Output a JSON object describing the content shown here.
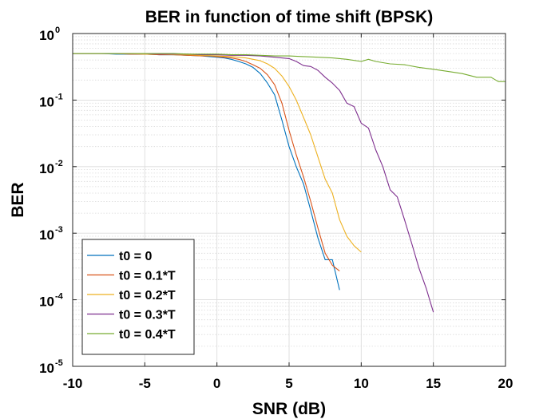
{
  "chart_data": {
    "type": "line",
    "title": "BER in function of time shift (BPSK)",
    "xlabel": "SNR (dB)",
    "ylabel": "BER",
    "xlim": [
      -10,
      20
    ],
    "ylim": [
      1e-05,
      1
    ],
    "yscale": "log",
    "grid": true,
    "minor_grid": true,
    "legend_position": "bottom-left",
    "x_ticks": [
      {
        "value": -10,
        "label": "-10"
      },
      {
        "value": -5,
        "label": "-5"
      },
      {
        "value": 0,
        "label": "0"
      },
      {
        "value": 5,
        "label": "5"
      },
      {
        "value": 10,
        "label": "10"
      },
      {
        "value": 15,
        "label": "15"
      },
      {
        "value": 20,
        "label": "20"
      }
    ],
    "y_ticks": [
      {
        "value": 1,
        "base": "10",
        "exp": "0"
      },
      {
        "value": 0.1,
        "base": "10",
        "exp": "-1"
      },
      {
        "value": 0.01,
        "base": "10",
        "exp": "-2"
      },
      {
        "value": 0.001,
        "base": "10",
        "exp": "-3"
      },
      {
        "value": 0.0001,
        "base": "10",
        "exp": "-4"
      },
      {
        "value": 1e-05,
        "base": "10",
        "exp": "-5"
      }
    ],
    "series": [
      {
        "name": "t0 = 0",
        "color": "#0072BD",
        "x": [
          -10,
          -9,
          -8,
          -7,
          -6,
          -5,
          -4,
          -3,
          -2,
          -1,
          -0.5,
          0,
          0.5,
          1,
          1.5,
          2,
          2.5,
          3,
          3.5,
          4,
          4.5,
          5,
          5.5,
          6,
          6.5,
          7,
          7.5,
          8,
          8.5
        ],
        "y": [
          0.5,
          0.5,
          0.5,
          0.49,
          0.49,
          0.49,
          0.48,
          0.48,
          0.47,
          0.46,
          0.45,
          0.44,
          0.43,
          0.41,
          0.38,
          0.35,
          0.31,
          0.25,
          0.18,
          0.12,
          0.05,
          0.02,
          0.01,
          0.0055,
          0.0022,
          0.00085,
          0.0004,
          0.0004,
          0.00014
        ]
      },
      {
        "name": "t0 = 0.1*T",
        "color": "#D95319",
        "x": [
          -10,
          -9,
          -8,
          -7,
          -6,
          -5,
          -4,
          -3,
          -2,
          -1,
          -0.5,
          0,
          0.5,
          1,
          1.5,
          2,
          2.5,
          3,
          3.5,
          4,
          4.5,
          5,
          5.5,
          6,
          6.5,
          7,
          7.5,
          8,
          8.5
        ],
        "y": [
          0.5,
          0.5,
          0.5,
          0.5,
          0.49,
          0.49,
          0.48,
          0.48,
          0.47,
          0.46,
          0.46,
          0.45,
          0.44,
          0.43,
          0.41,
          0.38,
          0.34,
          0.3,
          0.24,
          0.17,
          0.09,
          0.035,
          0.015,
          0.007,
          0.003,
          0.0012,
          0.0005,
          0.00033,
          0.00027
        ]
      },
      {
        "name": "t0 = 0.2*T",
        "color": "#EDB120",
        "x": [
          -10,
          -9,
          -8,
          -7,
          -6,
          -5,
          -4,
          -3,
          -2,
          -1,
          0,
          1,
          2,
          3,
          3.5,
          4,
          4.5,
          5,
          5.5,
          6,
          6.5,
          7,
          7.5,
          8,
          8.5,
          9,
          9.5,
          10
        ],
        "y": [
          0.5,
          0.5,
          0.5,
          0.5,
          0.5,
          0.49,
          0.49,
          0.48,
          0.48,
          0.47,
          0.46,
          0.45,
          0.43,
          0.39,
          0.35,
          0.3,
          0.23,
          0.16,
          0.1,
          0.055,
          0.03,
          0.014,
          0.0065,
          0.004,
          0.0016,
          0.0009,
          0.00065,
          0.00052
        ]
      },
      {
        "name": "t0 = 0.3*T",
        "color": "#7E2F8E",
        "x": [
          -10,
          -9,
          -8,
          -7,
          -6,
          -5,
          -4,
          -3,
          -2,
          -1,
          0,
          1,
          2,
          3,
          4,
          5,
          5.5,
          6,
          6.5,
          7,
          7.5,
          8,
          8.5,
          9,
          9.5,
          10,
          10.5,
          11,
          11.5,
          12,
          12.5,
          13,
          13.5,
          14,
          14.5,
          15
        ],
        "y": [
          0.5,
          0.5,
          0.5,
          0.5,
          0.5,
          0.5,
          0.49,
          0.49,
          0.49,
          0.48,
          0.48,
          0.47,
          0.47,
          0.46,
          0.44,
          0.42,
          0.38,
          0.33,
          0.32,
          0.28,
          0.22,
          0.18,
          0.14,
          0.09,
          0.08,
          0.045,
          0.038,
          0.018,
          0.01,
          0.0045,
          0.0035,
          0.0016,
          0.0007,
          0.0003,
          0.00015,
          6.5e-05
        ]
      },
      {
        "name": "t0 = 0.4*T",
        "color": "#77AC30",
        "x": [
          -10,
          -9,
          -8,
          -7,
          -6,
          -5,
          -4,
          -3,
          -2,
          -1,
          0,
          1,
          2,
          3,
          4,
          5,
          6,
          7,
          8,
          9,
          10,
          10.5,
          11,
          12,
          13,
          14,
          15,
          16,
          17,
          18,
          19,
          19.5,
          20
        ],
        "y": [
          0.5,
          0.5,
          0.5,
          0.5,
          0.5,
          0.5,
          0.5,
          0.5,
          0.49,
          0.49,
          0.49,
          0.48,
          0.48,
          0.47,
          0.46,
          0.46,
          0.45,
          0.44,
          0.43,
          0.41,
          0.38,
          0.41,
          0.38,
          0.35,
          0.34,
          0.31,
          0.29,
          0.27,
          0.25,
          0.22,
          0.22,
          0.19,
          0.19
        ]
      }
    ]
  }
}
